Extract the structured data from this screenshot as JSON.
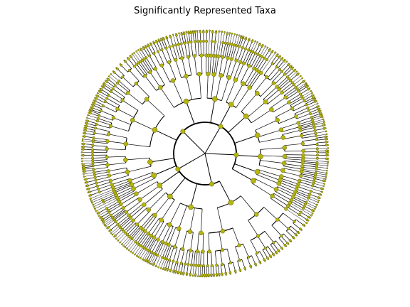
{
  "title": "Significantly Represented Taxa",
  "colors": {
    "node_fill": "#b5b512",
    "node_stroke": "#5a5a00",
    "line": "#000000",
    "background": "#ffffff"
  },
  "tree": {
    "type": "radial-cladogram",
    "rings": 6,
    "leaf_count": 300,
    "clades": [
      {
        "arc_deg": [
          35,
          120
        ],
        "split_level": 2
      },
      {
        "arc_deg": [
          120,
          180
        ],
        "split_level": 2
      },
      {
        "arc_deg": [
          180,
          270
        ],
        "split_level": 2
      },
      {
        "arc_deg": [
          270,
          330
        ],
        "split_level": 1
      },
      {
        "arc_deg": [
          330,
          395
        ],
        "split_level": 1
      }
    ]
  }
}
